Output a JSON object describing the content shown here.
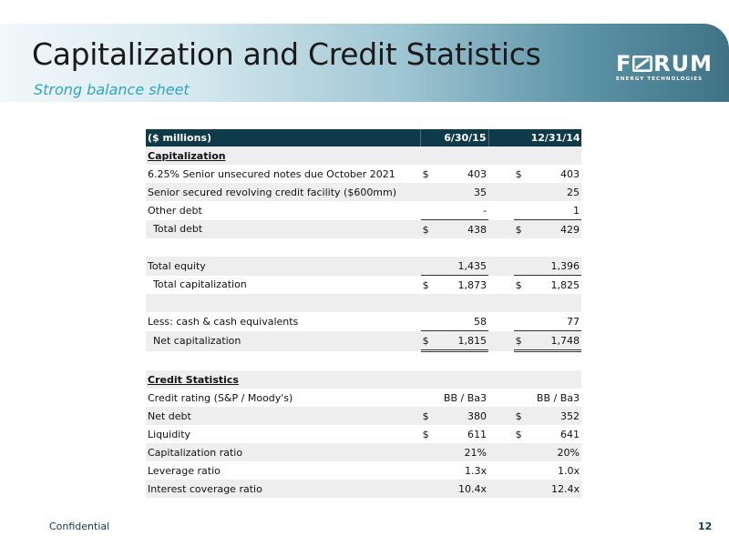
{
  "slide": {
    "title": "Capitalization and Credit Statistics",
    "subtitle": "Strong balance sheet",
    "logo": {
      "word_left": "F",
      "word_right": "RUM",
      "sub": "ENERGY TECHNOLOGIES"
    },
    "footer_left": "Confidential",
    "page_number": "12"
  },
  "table": {
    "header": {
      "label": "($ millions)",
      "col1": "6/30/15",
      "col2": "12/31/14"
    },
    "rows": {
      "capitalization": {
        "label": "Capitalization"
      },
      "notes": {
        "label": "6.25% Senior unsecured notes due October 2021",
        "sym1": "$",
        "v1": "403",
        "sym2": "$",
        "v2": "403"
      },
      "revolver": {
        "label": "Senior secured revolving credit facility ($600mm)",
        "v1": "35",
        "v2": "25"
      },
      "other_debt": {
        "label": "Other debt",
        "v1": "-",
        "v2": "1"
      },
      "total_debt": {
        "label": "Total debt",
        "sym1": "$",
        "v1": "438",
        "sym2": "$",
        "v2": "429"
      },
      "total_equity": {
        "label": "Total equity",
        "v1": "1,435",
        "v2": "1,396"
      },
      "total_cap": {
        "label": "Total capitalization",
        "sym1": "$",
        "v1": "1,873",
        "sym2": "$",
        "v2": "1,825"
      },
      "less_cash": {
        "label": "Less: cash & cash equivalents",
        "v1": "58",
        "v2": "77"
      },
      "net_cap": {
        "label": "Net capitalization",
        "sym1": "$",
        "v1": "1,815",
        "sym2": "$",
        "v2": "1,748"
      },
      "credit_stats": {
        "label": "Credit Statistics"
      },
      "credit_rating": {
        "label": "Credit rating (S&P / Moody's)",
        "v1": "BB / Ba3",
        "v2": "BB / Ba3"
      },
      "net_debt": {
        "label": "Net debt",
        "sym1": "$",
        "v1": "380",
        "sym2": "$",
        "v2": "352"
      },
      "liquidity": {
        "label": "Liquidity",
        "sym1": "$",
        "v1": "611",
        "sym2": "$",
        "v2": "641"
      },
      "cap_ratio": {
        "label": "Capitalization ratio",
        "v1": "21%",
        "v2": "20%"
      },
      "leverage": {
        "label": "Leverage ratio",
        "v1": "1.3x",
        "v2": "1.0x"
      },
      "interest_cov": {
        "label": "Interest coverage ratio",
        "v1": "10.4x",
        "v2": "12.4x"
      }
    }
  }
}
